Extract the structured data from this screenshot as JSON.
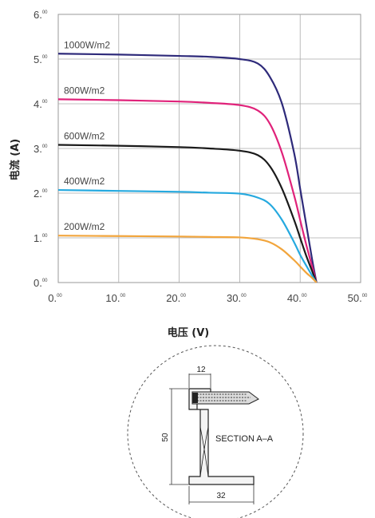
{
  "chart_data": {
    "type": "line",
    "title": "",
    "xlabel": "电压 (V)",
    "ylabel": "电流 (A)",
    "xlim": [
      0,
      50
    ],
    "ylim": [
      0,
      6
    ],
    "grid": true,
    "x_ticks": [
      {
        "main": "0.",
        "sup": "00"
      },
      {
        "main": "10.",
        "sup": "00"
      },
      {
        "main": "20.",
        "sup": "00"
      },
      {
        "main": "30.",
        "sup": "00"
      },
      {
        "main": "40.",
        "sup": "00"
      },
      {
        "main": "50.",
        "sup": "00"
      }
    ],
    "y_ticks": [
      {
        "main": "0.",
        "sup": "00"
      },
      {
        "main": "1.",
        "sup": "00"
      },
      {
        "main": "2.",
        "sup": "00"
      },
      {
        "main": "3.",
        "sup": "00"
      },
      {
        "main": "4.",
        "sup": "00"
      },
      {
        "main": "5.",
        "sup": "00"
      },
      {
        "main": "6.",
        "sup": "00"
      }
    ],
    "series": [
      {
        "name": "1000W/m2",
        "color": "#2e2a7a",
        "x": [
          0,
          10,
          20,
          25,
          30,
          33,
          35,
          37,
          39,
          40,
          41,
          42,
          42.7
        ],
        "y": [
          5.12,
          5.1,
          5.07,
          5.05,
          5.0,
          4.9,
          4.6,
          4.0,
          2.9,
          2.1,
          1.3,
          0.5,
          0.0
        ]
      },
      {
        "name": "800W/m2",
        "color": "#e0227a",
        "x": [
          0,
          10,
          20,
          25,
          30,
          33,
          35,
          37,
          39,
          40,
          41,
          42,
          42.7
        ],
        "y": [
          4.1,
          4.08,
          4.05,
          4.02,
          3.97,
          3.85,
          3.55,
          2.9,
          1.95,
          1.4,
          0.85,
          0.35,
          0.0
        ]
      },
      {
        "name": "600W/m2",
        "color": "#1a1a1a",
        "x": [
          0,
          10,
          20,
          25,
          30,
          33,
          35,
          37,
          39,
          40,
          41,
          42,
          42.7
        ],
        "y": [
          3.08,
          3.06,
          3.03,
          3.0,
          2.95,
          2.85,
          2.6,
          2.1,
          1.4,
          1.0,
          0.6,
          0.25,
          0.0
        ]
      },
      {
        "name": "400W/m2",
        "color": "#25a9df",
        "x": [
          0,
          10,
          20,
          25,
          30,
          33,
          35,
          37,
          39,
          40,
          41,
          42,
          42.7
        ],
        "y": [
          2.07,
          2.05,
          2.03,
          2.01,
          1.99,
          1.9,
          1.75,
          1.4,
          0.9,
          0.62,
          0.38,
          0.15,
          0.0
        ]
      },
      {
        "name": "200W/m2",
        "color": "#f2a53c",
        "x": [
          0,
          10,
          20,
          25,
          30,
          33,
          35,
          37,
          39,
          40,
          41,
          42,
          42.7
        ],
        "y": [
          1.05,
          1.04,
          1.03,
          1.02,
          1.01,
          0.97,
          0.9,
          0.74,
          0.5,
          0.36,
          0.22,
          0.1,
          0.0
        ]
      }
    ]
  },
  "section": {
    "title": "SECTION A–A",
    "dim_top": "12",
    "dim_side": "50",
    "dim_bottom": "32"
  }
}
